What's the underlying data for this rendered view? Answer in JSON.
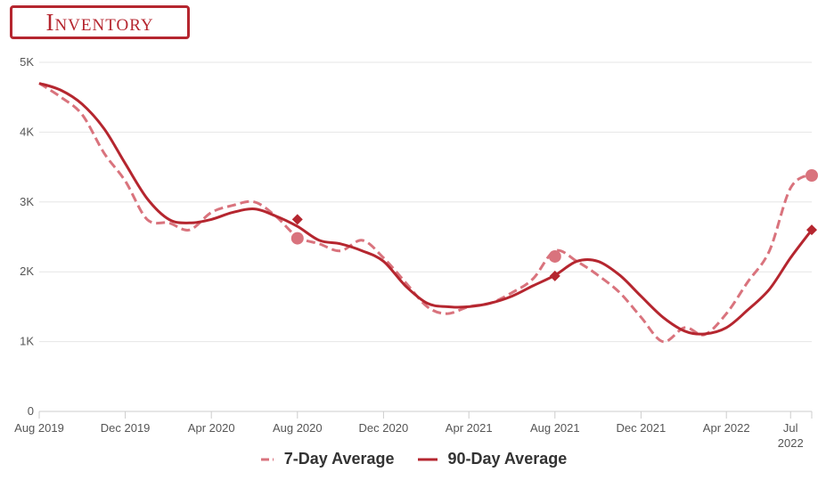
{
  "title": "Inventory",
  "colors": {
    "seven_day": "#d9737d",
    "ninety_day": "#b5262f",
    "grid": "#e6e6e6",
    "axis": "#cccccc"
  },
  "chart_data": {
    "type": "line",
    "title": "Inventory",
    "xlabel": "",
    "ylabel": "",
    "ylim": [
      0,
      5000
    ],
    "y_ticks": [
      0,
      1000,
      2000,
      3000,
      4000,
      5000
    ],
    "y_tick_labels": [
      "0",
      "1K",
      "2K",
      "3K",
      "4K",
      "5K"
    ],
    "x_range": [
      "2019-08-01",
      "2022-07-31"
    ],
    "x_ticks": [
      "2019-08-01",
      "2019-12-01",
      "2020-04-01",
      "2020-08-01",
      "2020-12-01",
      "2021-04-01",
      "2021-08-01",
      "2021-12-01",
      "2022-04-01",
      "2022-07-01"
    ],
    "x_tick_labels": [
      [
        "Aug 2019"
      ],
      [
        "Dec 2019"
      ],
      [
        "Apr 2020"
      ],
      [
        "Aug 2020"
      ],
      [
        "Dec 2020"
      ],
      [
        "Apr 2021"
      ],
      [
        "Aug 2021"
      ],
      [
        "Dec 2021"
      ],
      [
        "Apr 2022"
      ],
      [
        "Jul",
        "2022"
      ]
    ],
    "grid": true,
    "legend_position": "bottom-center",
    "series": [
      {
        "name": "7-Day Average",
        "style": "dashed",
        "color": "#d9737d",
        "points": [
          [
            "2019-08-01",
            4700
          ],
          [
            "2019-09-01",
            4500
          ],
          [
            "2019-10-01",
            4250
          ],
          [
            "2019-11-01",
            3700
          ],
          [
            "2019-12-01",
            3300
          ],
          [
            "2020-01-01",
            2750
          ],
          [
            "2020-02-01",
            2700
          ],
          [
            "2020-03-01",
            2600
          ],
          [
            "2020-04-01",
            2850
          ],
          [
            "2020-05-01",
            2950
          ],
          [
            "2020-06-01",
            3000
          ],
          [
            "2020-07-01",
            2800
          ],
          [
            "2020-08-01",
            2500
          ],
          [
            "2020-09-01",
            2400
          ],
          [
            "2020-10-01",
            2300
          ],
          [
            "2020-11-01",
            2450
          ],
          [
            "2020-12-01",
            2200
          ],
          [
            "2021-01-01",
            1850
          ],
          [
            "2021-02-01",
            1500
          ],
          [
            "2021-03-01",
            1400
          ],
          [
            "2021-04-01",
            1500
          ],
          [
            "2021-05-01",
            1550
          ],
          [
            "2021-06-01",
            1700
          ],
          [
            "2021-07-01",
            1900
          ],
          [
            "2021-08-01",
            2300
          ],
          [
            "2021-09-01",
            2150
          ],
          [
            "2021-10-01",
            1950
          ],
          [
            "2021-11-01",
            1700
          ],
          [
            "2021-12-01",
            1350
          ],
          [
            "2022-01-01",
            1000
          ],
          [
            "2022-02-01",
            1200
          ],
          [
            "2022-03-01",
            1100
          ],
          [
            "2022-04-01",
            1400
          ],
          [
            "2022-05-01",
            1850
          ],
          [
            "2022-06-01",
            2300
          ],
          [
            "2022-07-01",
            3200
          ],
          [
            "2022-07-31",
            3400
          ]
        ],
        "highlight_points": [
          [
            "2020-08-01",
            2480
          ],
          [
            "2021-08-01",
            2220
          ],
          [
            "2022-07-31",
            3380
          ]
        ]
      },
      {
        "name": "90-Day Average",
        "style": "solid",
        "color": "#b5262f",
        "points": [
          [
            "2019-08-01",
            4700
          ],
          [
            "2019-09-01",
            4600
          ],
          [
            "2019-10-01",
            4400
          ],
          [
            "2019-11-01",
            4050
          ],
          [
            "2019-12-01",
            3550
          ],
          [
            "2020-01-01",
            3050
          ],
          [
            "2020-02-01",
            2750
          ],
          [
            "2020-03-01",
            2700
          ],
          [
            "2020-04-01",
            2750
          ],
          [
            "2020-05-01",
            2850
          ],
          [
            "2020-06-01",
            2900
          ],
          [
            "2020-07-01",
            2800
          ],
          [
            "2020-08-01",
            2650
          ],
          [
            "2020-09-01",
            2450
          ],
          [
            "2020-10-01",
            2400
          ],
          [
            "2020-11-01",
            2300
          ],
          [
            "2020-12-01",
            2150
          ],
          [
            "2021-01-01",
            1800
          ],
          [
            "2021-02-01",
            1550
          ],
          [
            "2021-03-01",
            1500
          ],
          [
            "2021-04-01",
            1500
          ],
          [
            "2021-05-01",
            1550
          ],
          [
            "2021-06-01",
            1650
          ],
          [
            "2021-07-01",
            1800
          ],
          [
            "2021-08-01",
            1950
          ],
          [
            "2021-09-01",
            2150
          ],
          [
            "2021-10-01",
            2150
          ],
          [
            "2021-11-01",
            1950
          ],
          [
            "2021-12-01",
            1650
          ],
          [
            "2022-01-01",
            1350
          ],
          [
            "2022-02-01",
            1150
          ],
          [
            "2022-03-01",
            1110
          ],
          [
            "2022-04-01",
            1200
          ],
          [
            "2022-05-01",
            1450
          ],
          [
            "2022-06-01",
            1750
          ],
          [
            "2022-07-01",
            2200
          ],
          [
            "2022-07-31",
            2600
          ]
        ],
        "highlight_points": [
          [
            "2020-08-01",
            2750
          ],
          [
            "2021-08-01",
            1940
          ],
          [
            "2022-07-31",
            2600
          ]
        ]
      }
    ]
  }
}
